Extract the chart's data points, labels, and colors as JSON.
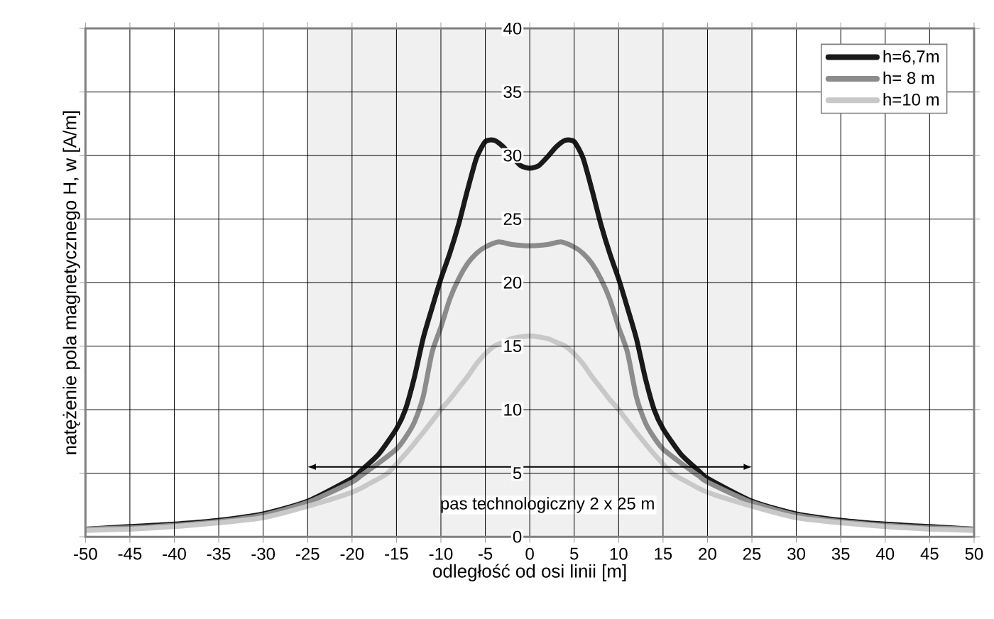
{
  "chart_data": {
    "type": "line",
    "xlabel": "odległość od osi linii [m]",
    "ylabel": "natężenie pola magnetycznego H, w [A/m]",
    "xlim": [
      -50,
      50
    ],
    "ylim": [
      0,
      40
    ],
    "xticks": [
      -50,
      -45,
      -40,
      -35,
      -30,
      -25,
      -20,
      -15,
      -10,
      -5,
      0,
      5,
      10,
      15,
      20,
      25,
      30,
      35,
      40,
      45,
      50
    ],
    "yticks": [
      0,
      5,
      10,
      15,
      20,
      25,
      30,
      35,
      40
    ],
    "grid": true,
    "legend": "top right",
    "marker": "none",
    "line_style": "solid",
    "bands": [
      {
        "axis": "x",
        "from": -25,
        "to": 25,
        "label": "pas technologiczny 2 x 25 m",
        "color": "#f0f0f0"
      }
    ],
    "series": [
      {
        "name": "h=6,7m",
        "color": "#1a1a1a",
        "x": [
          -50,
          -45,
          -40,
          -35,
          -30,
          -25,
          -20,
          -19,
          -17,
          -15,
          -14,
          -13,
          -12,
          -11,
          -10,
          -9,
          -8,
          -7,
          -6,
          -5,
          -4,
          -3,
          -2,
          -1,
          0,
          1,
          2,
          3,
          4,
          5,
          6,
          7,
          8,
          9,
          10,
          11,
          12,
          13,
          14,
          15,
          17,
          19,
          20,
          25,
          30,
          35,
          40,
          45,
          50
        ],
        "values": [
          0.6,
          0.8,
          1.0,
          1.3,
          1.8,
          2.8,
          4.6,
          5.2,
          6.5,
          8.5,
          10,
          12.5,
          15.6,
          18,
          20.3,
          22.3,
          24.6,
          27.3,
          29.8,
          31.1,
          31.2,
          30.7,
          29.9,
          29.2,
          29,
          29.2,
          29.9,
          30.7,
          31.2,
          31.1,
          29.8,
          27.3,
          24.6,
          22.3,
          20.3,
          18,
          15.6,
          12.5,
          10,
          8.5,
          6.5,
          5.2,
          4.6,
          2.8,
          1.8,
          1.3,
          1.0,
          0.8,
          0.6
        ]
      },
      {
        "name": "h= 8 m",
        "color": "#8c8c8c",
        "x": [
          -50,
          -45,
          -40,
          -35,
          -30,
          -25,
          -20,
          -19,
          -17,
          -15,
          -14,
          -13,
          -12,
          -11,
          -10,
          -9,
          -8,
          -7,
          -6,
          -5,
          -3.5,
          -2,
          0,
          2,
          3.5,
          5,
          6,
          7,
          8,
          9,
          10,
          11,
          12,
          13,
          14,
          15,
          17,
          19,
          20,
          25,
          30,
          35,
          40,
          45,
          50
        ],
        "values": [
          0.6,
          0.7,
          0.9,
          1.2,
          1.7,
          2.7,
          4.3,
          4.8,
          5.8,
          6.9,
          7.8,
          9,
          11,
          14.5,
          16.5,
          18.7,
          20.3,
          21.5,
          22.3,
          22.8,
          23.2,
          23.0,
          22.9,
          23.0,
          23.2,
          22.8,
          22.3,
          21.5,
          20.3,
          18.7,
          16.5,
          14.5,
          11,
          9,
          7.8,
          6.9,
          5.8,
          4.8,
          4.3,
          2.7,
          1.7,
          1.2,
          0.9,
          0.7,
          0.6
        ]
      },
      {
        "name": "h=10 m",
        "color": "#c8c8c8",
        "x": [
          -50,
          -45,
          -40,
          -35,
          -30,
          -25,
          -20,
          -18,
          -16,
          -14,
          -12,
          -10,
          -9,
          -8,
          -7,
          -6,
          -5,
          -4,
          -3,
          -2,
          0,
          2,
          3,
          4,
          5,
          6,
          7,
          8,
          9,
          10,
          12,
          14,
          16,
          18,
          20,
          25,
          30,
          35,
          40,
          45,
          50
        ],
        "values": [
          0.5,
          0.6,
          0.8,
          1.1,
          1.5,
          2.4,
          3.5,
          4.2,
          5,
          6.5,
          8.2,
          10,
          10.8,
          11.7,
          12.6,
          13.6,
          14.4,
          15,
          15.3,
          15.6,
          15.8,
          15.6,
          15.3,
          15,
          14.4,
          13.6,
          12.6,
          11.7,
          10.8,
          10,
          8.2,
          6.5,
          5,
          4.2,
          3.5,
          2.4,
          1.5,
          1.1,
          0.8,
          0.6,
          0.5
        ]
      }
    ]
  }
}
